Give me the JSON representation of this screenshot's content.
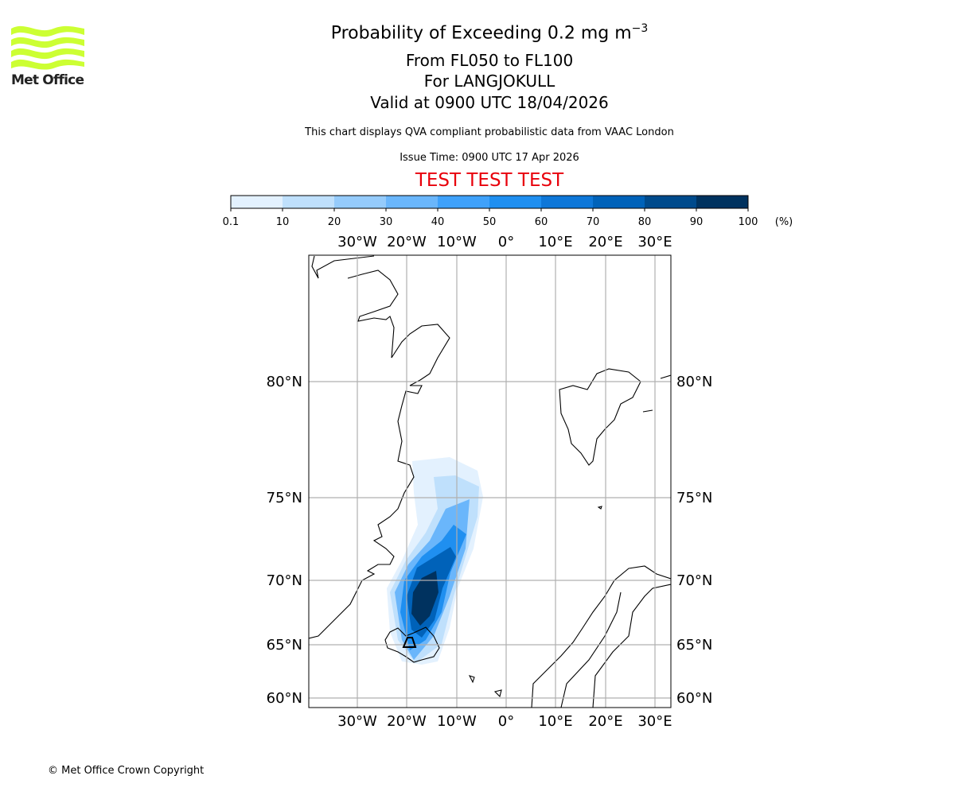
{
  "logo": {
    "text": "Met Office",
    "color": "#ccff33"
  },
  "header": {
    "title_main": "Probability of Exceeding 0.2 mg m",
    "title_exp": "−3",
    "levels": "From FL050 to FL100",
    "location": "For LANGJOKULL",
    "valid": "Valid at 0900 UTC 18/04/2026",
    "subtitle": "This chart displays QVA compliant probabilistic data from VAAC London",
    "issue_time": "Issue Time: 0900 UTC 17 Apr 2026",
    "test_banner": "TEST TEST TEST"
  },
  "footer": {
    "copyright": "© Met Office Crown Copyright"
  },
  "chart_data": {
    "type": "heatmap",
    "title": "Probability of Exceeding 0.2 mg m−3",
    "colorbar": {
      "unit": "(%)",
      "ticks": [
        "0.1",
        "10",
        "20",
        "30",
        "40",
        "50",
        "60",
        "70",
        "80",
        "90",
        "100"
      ],
      "colors": [
        "#e3f1fe",
        "#bfe0fc",
        "#95cbfb",
        "#6ab6fb",
        "#3fa1fa",
        "#1f8ff0",
        "#0e77d8",
        "#0062b9",
        "#004a8c",
        "#00325f"
      ]
    },
    "lon_labels": [
      "30°W",
      "20°W",
      "10°W",
      "0°",
      "10°E",
      "20°E",
      "30°E"
    ],
    "lat_labels": [
      "80°N",
      "75°N",
      "70°N",
      "65°N",
      "60°N"
    ],
    "grid": true,
    "volcano": "LANGJOKULL",
    "plume_description_levels": [
      0.1,
      10,
      30,
      50,
      70,
      90
    ]
  }
}
